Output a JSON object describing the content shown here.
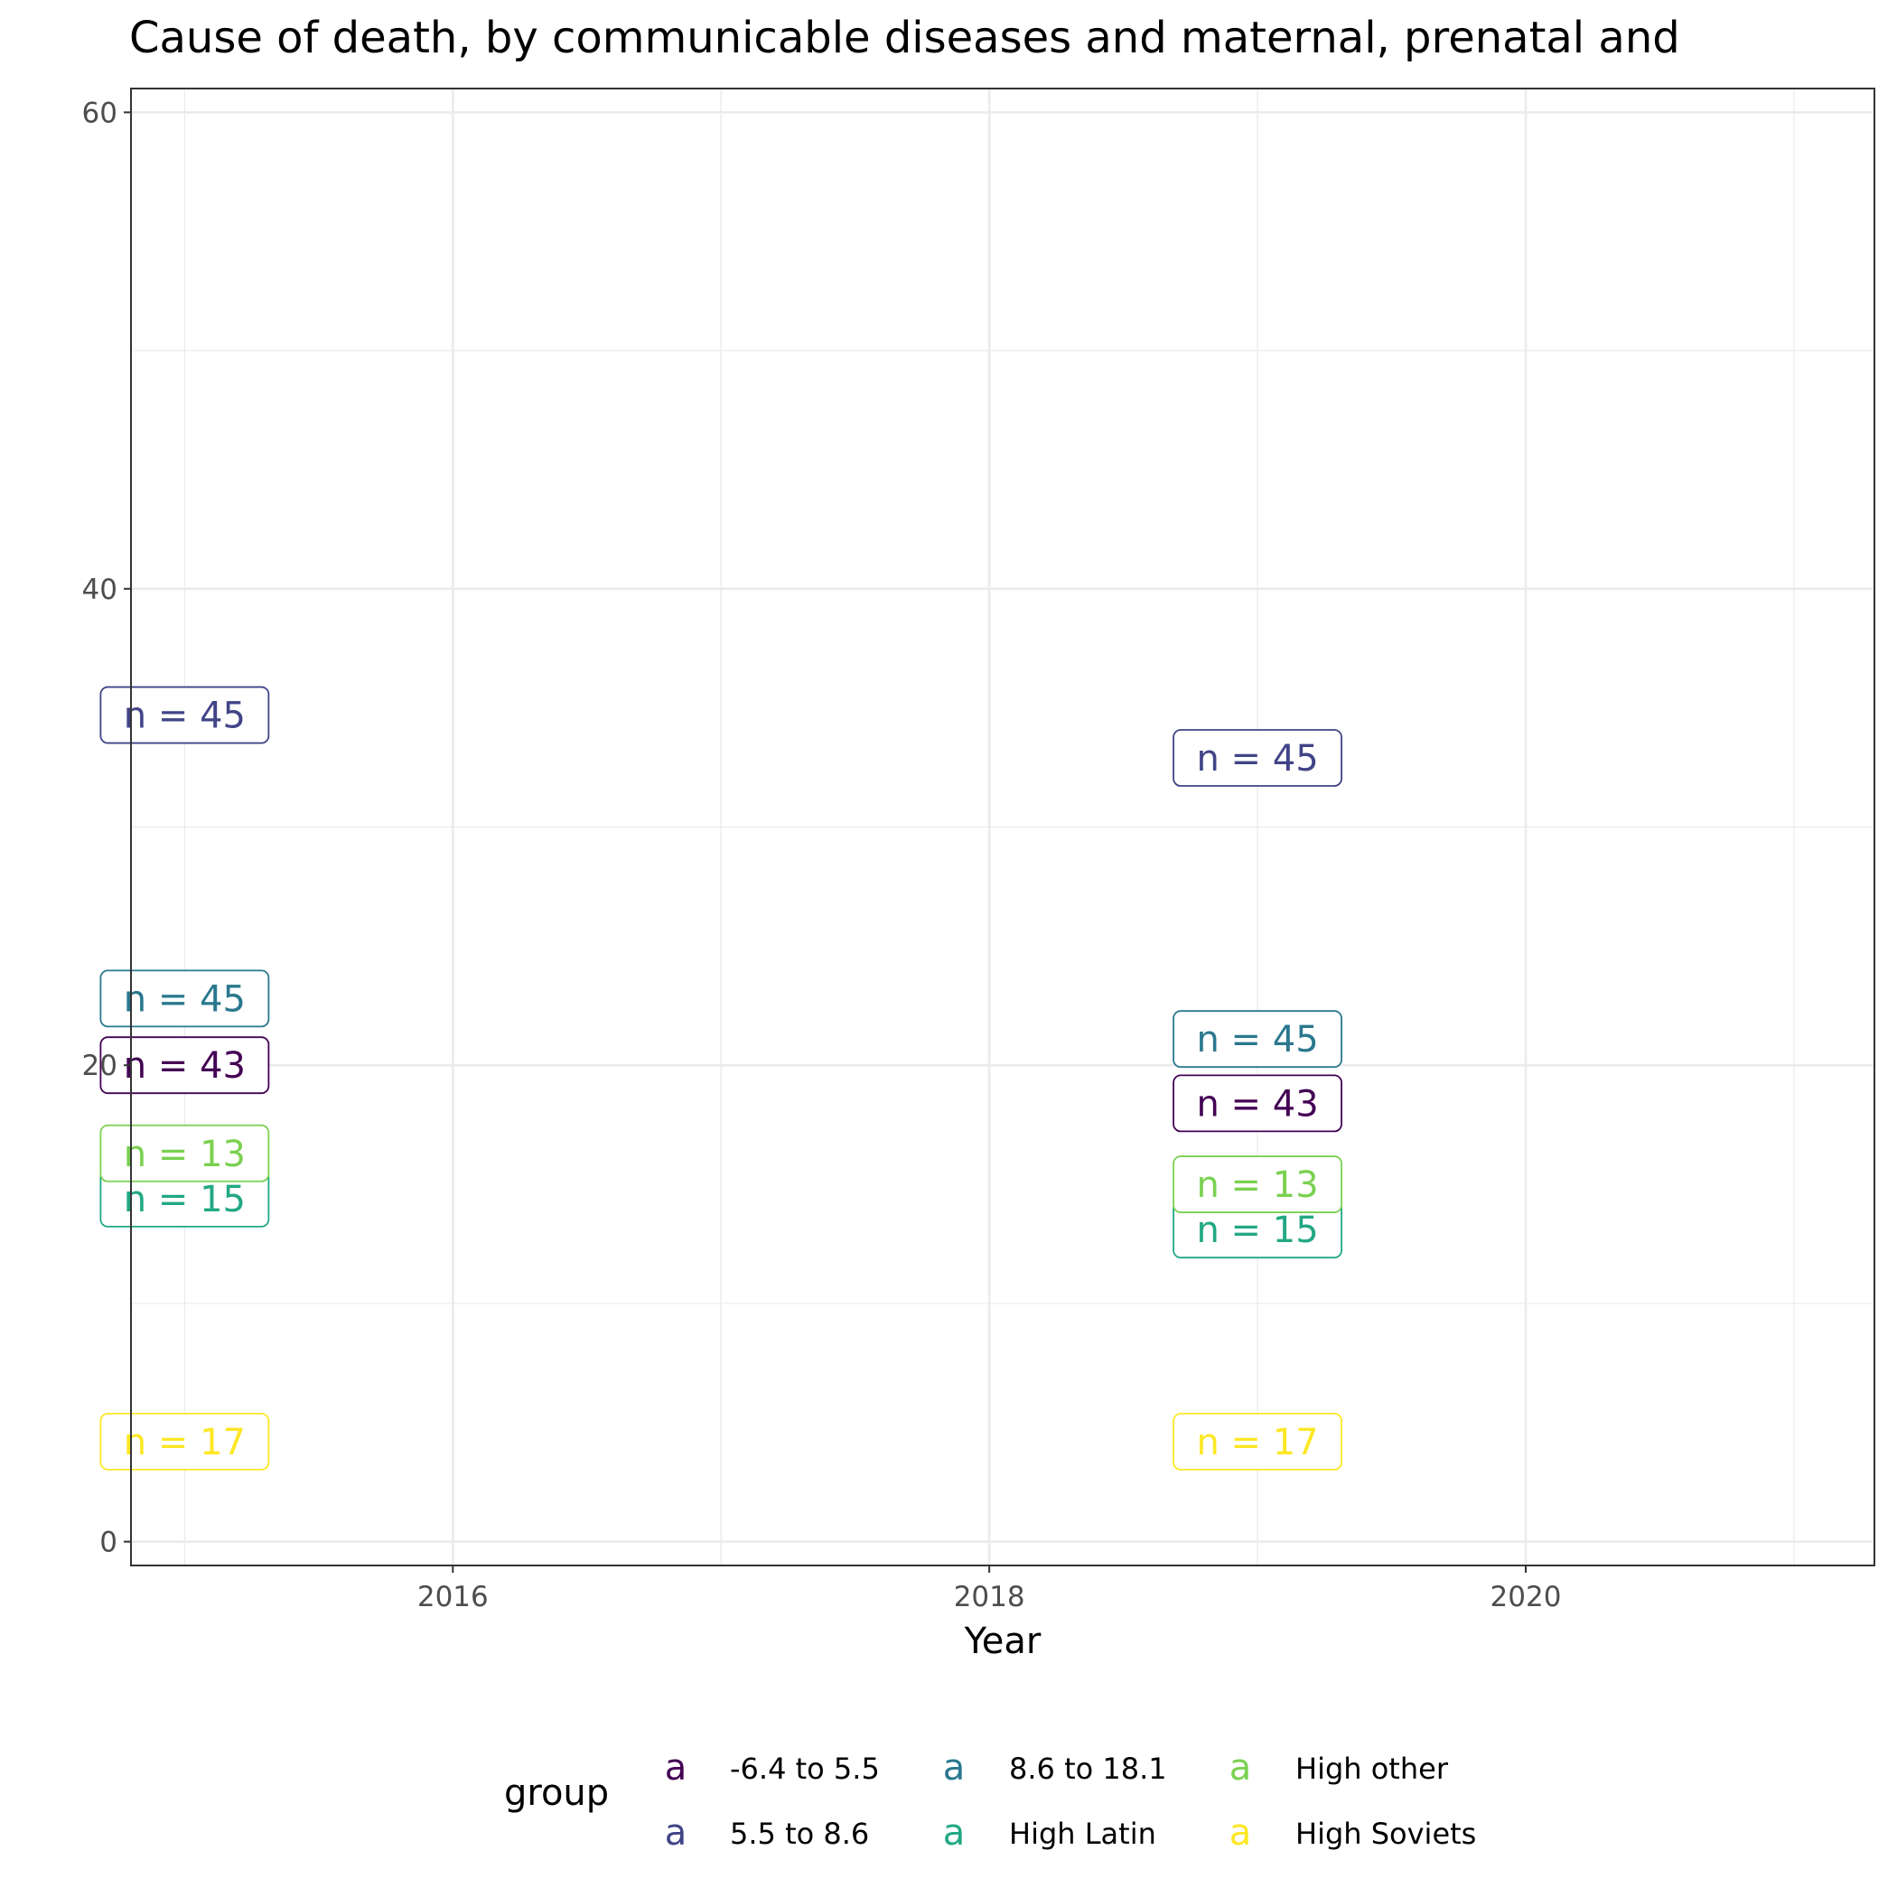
{
  "chart_data": {
    "type": "scatter",
    "title": "Cause of death, by communicable diseases and maternal, prenatal and",
    "xlabel": "Year",
    "ylabel": "",
    "xlim": [
      2014.8,
      2021.3
    ],
    "ylim": [
      -1,
      61
    ],
    "x_ticks": [
      2016,
      2018,
      2020
    ],
    "y_ticks": [
      0,
      20,
      40,
      60
    ],
    "grid": true,
    "legend": {
      "title": "group",
      "position": "bottom",
      "key_glyph": "a",
      "entries": [
        {
          "label": "-6.4 to 5.5",
          "color": "#440154"
        },
        {
          "label": "5.5 to 8.6",
          "color": "#414487"
        },
        {
          "label": "8.6 to 18.1",
          "color": "#2A788E"
        },
        {
          "label": "High Latin",
          "color": "#22A884"
        },
        {
          "label": "High other",
          "color": "#7AD151"
        },
        {
          "label": "High Soviets",
          "color": "#FDE725"
        }
      ]
    },
    "series": [
      {
        "name": "-6.4 to 5.5",
        "color": "#440154",
        "points": [
          {
            "x": 2015,
            "y": 20.0,
            "label": "n = 43"
          },
          {
            "x": 2019,
            "y": 18.4,
            "label": "n = 43"
          }
        ]
      },
      {
        "name": "5.5 to 8.6",
        "color": "#414487",
        "points": [
          {
            "x": 2015,
            "y": 34.7,
            "label": "n = 45"
          },
          {
            "x": 2019,
            "y": 32.9,
            "label": "n = 45"
          }
        ]
      },
      {
        "name": "8.6 to 18.1",
        "color": "#2A788E",
        "points": [
          {
            "x": 2015,
            "y": 22.8,
            "label": "n = 45"
          },
          {
            "x": 2019,
            "y": 21.1,
            "label": "n = 45"
          }
        ]
      },
      {
        "name": "High Latin",
        "color": "#22A884",
        "points": [
          {
            "x": 2015,
            "y": 14.4,
            "label": "n = 15"
          },
          {
            "x": 2019,
            "y": 13.1,
            "label": "n = 15"
          }
        ]
      },
      {
        "name": "High other",
        "color": "#7AD151",
        "points": [
          {
            "x": 2015,
            "y": 16.3,
            "label": "n = 13"
          },
          {
            "x": 2019,
            "y": 15.0,
            "label": "n = 13"
          }
        ]
      },
      {
        "name": "High Soviets",
        "color": "#FDE725",
        "points": [
          {
            "x": 2015,
            "y": 4.2,
            "label": "n = 17"
          },
          {
            "x": 2019,
            "y": 4.2,
            "label": "n = 17"
          }
        ]
      }
    ]
  }
}
